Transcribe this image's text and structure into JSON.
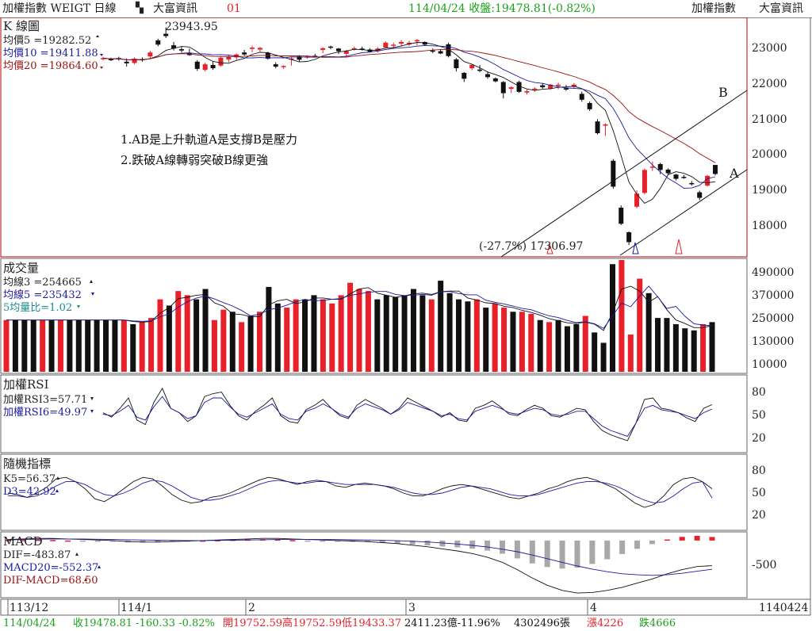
{
  "colors": {
    "up": "#e8202a",
    "down": "#111111",
    "green": "#1aa31a",
    "blue": "#1a1aa0",
    "darkred": "#9a1010",
    "teal": "#1a8c8c",
    "grey": "#a8a8a8",
    "frame": "#555555"
  },
  "top_bar": {
    "left_label": "加權指數 WEIGT 日線",
    "icon": "grid-dots-icon",
    "brand": "大富資訊",
    "code": "01",
    "quote": "114/04/24 收盤:19478.81(-0.82%)",
    "right_index": "加權指數",
    "right_brand": "大富資訊"
  },
  "kline_panel": {
    "title": "K 線圖",
    "ma5": "均價5 =19282.52",
    "ma10": "均價10 =19411.88",
    "ma20": "均價20 =19864.60",
    "high_label": "23943.95",
    "low_label": "(-27.7%) 17306.97",
    "annotation_1": "1.AB是上升軌道A是支撐B是壓力",
    "annotation_2": "2.跌破A線轉弱突破B線更強",
    "line_label_a": "A",
    "line_label_b": "B",
    "y_ticks": [
      "23000",
      "22000",
      "21000",
      "20000",
      "19000",
      "18000"
    ]
  },
  "volume_panel": {
    "title": "成交量",
    "ma3": "均線3 =254665",
    "ma5": "均線5 =235432",
    "ratio": "5均量比=1.02",
    "y_ticks": [
      "490000",
      "370000",
      "250000",
      "130000",
      "10000"
    ]
  },
  "rsi_panel": {
    "title": "加權RSI",
    "rsi3": "加權RSI3=57.71",
    "rsi6": "加權RSI6=49.97",
    "y_ticks": [
      "80",
      "50",
      "20"
    ]
  },
  "kd_panel": {
    "title": "隨機指標",
    "k5": "K5=56.37",
    "d3": "D3=42.92",
    "y_ticks": [
      "80",
      "50",
      "20"
    ]
  },
  "macd_panel": {
    "title": "MACD",
    "dif": "DIF=-483.87",
    "macd20": "MACD20=-552.37",
    "osc": "DIF-MACD=68.50",
    "y_ticks": [
      "-500"
    ]
  },
  "x_axis": {
    "labels": [
      "113/12",
      "114/1",
      "2",
      "3",
      "4"
    ],
    "right": "1140424"
  },
  "bottom_bar": {
    "date": "114/04/24",
    "close": "收19478.81 -160.33 -0.82%",
    "ohlc": "開19752.59高19752.59低19433.37",
    "amount": "2411.23億-11.96%",
    "volume": "4302496張",
    "adv": "漲4226",
    "dec": "跌4666"
  },
  "chart_data": {
    "type": "candlestick",
    "title": "加權指數 WEIGT 日線",
    "x_labels": [
      "113/12",
      "114/1",
      "2",
      "3",
      "4"
    ],
    "candles": [
      [
        23000,
        23050,
        22940,
        23010
      ],
      [
        22980,
        23020,
        22920,
        22960
      ],
      [
        23010,
        23050,
        22930,
        23000
      ],
      [
        22900,
        23000,
        22750,
        22850
      ],
      [
        22860,
        23030,
        22820,
        22990
      ],
      [
        22980,
        23030,
        22900,
        22950
      ],
      [
        23060,
        23230,
        22990,
        23180
      ],
      [
        23550,
        23600,
        23370,
        23420
      ],
      [
        23750,
        23944,
        23620,
        23680
      ],
      [
        23400,
        23500,
        23240,
        23300
      ],
      [
        23280,
        23350,
        23180,
        23240
      ],
      [
        23160,
        23300,
        23080,
        23100
      ],
      [
        22900,
        22950,
        22620,
        22680
      ],
      [
        22650,
        22870,
        22600,
        22820
      ],
      [
        22800,
        22920,
        22650,
        22700
      ],
      [
        22780,
        23070,
        22750,
        23020
      ],
      [
        22970,
        23100,
        22880,
        23040
      ],
      [
        23030,
        23150,
        22960,
        23120
      ],
      [
        23180,
        23260,
        23080,
        23120
      ],
      [
        23290,
        23390,
        23190,
        23330
      ],
      [
        23270,
        23350,
        23200,
        23320
      ],
      [
        23170,
        23200,
        22960,
        22990
      ],
      [
        22820,
        22880,
        22700,
        22750
      ],
      [
        22750,
        22790,
        22680,
        22770
      ],
      [
        22970,
        23040,
        22780,
        23000
      ],
      [
        23060,
        23100,
        22900,
        22960
      ],
      [
        23030,
        23100,
        22990,
        23060
      ],
      [
        23080,
        23140,
        23030,
        23050
      ],
      [
        23260,
        23340,
        23160,
        23310
      ],
      [
        23360,
        23390,
        23280,
        23330
      ],
      [
        23300,
        23320,
        23130,
        23220
      ],
      [
        23140,
        23260,
        23050,
        23220
      ],
      [
        23300,
        23360,
        23240,
        23310
      ],
      [
        23300,
        23360,
        23240,
        23260
      ],
      [
        23270,
        23310,
        23180,
        23200
      ],
      [
        23220,
        23340,
        23180,
        23300
      ],
      [
        23330,
        23520,
        23310,
        23480
      ],
      [
        23390,
        23480,
        23300,
        23420
      ],
      [
        23450,
        23560,
        23360,
        23500
      ],
      [
        23430,
        23540,
        23380,
        23480
      ],
      [
        23520,
        23590,
        23400,
        23560
      ],
      [
        23500,
        23520,
        23390,
        23420
      ],
      [
        23240,
        23300,
        23160,
        23210
      ],
      [
        23220,
        23260,
        23130,
        23150
      ],
      [
        23430,
        23480,
        23030,
        23070
      ],
      [
        22970,
        23010,
        22600,
        22700
      ],
      [
        22560,
        22580,
        22280,
        22380
      ],
      [
        22700,
        22830,
        22640,
        22800
      ],
      [
        22660,
        22800,
        22580,
        22620
      ],
      [
        22520,
        22600,
        22380,
        22430
      ],
      [
        22390,
        22420,
        22270,
        22300
      ],
      [
        22280,
        22310,
        21780,
        21940
      ],
      [
        22070,
        22150,
        21950,
        22120
      ],
      [
        22280,
        22320,
        21950,
        21980
      ],
      [
        21960,
        22050,
        21900,
        22000
      ],
      [
        22060,
        22120,
        21980,
        22080
      ],
      [
        22180,
        22250,
        22080,
        22120
      ],
      [
        22080,
        22220,
        22050,
        22200
      ],
      [
        22160,
        22260,
        22060,
        22200
      ],
      [
        22090,
        22190,
        22010,
        22050
      ],
      [
        22130,
        22250,
        22080,
        22200
      ],
      [
        21920,
        21990,
        21680,
        21740
      ],
      [
        21640,
        21690,
        21400,
        21450
      ],
      [
        21080,
        21150,
        20680,
        20720
      ],
      [
        20950,
        21020,
        20640,
        20990
      ],
      [
        19880,
        19930,
        19030,
        19090
      ],
      [
        18450,
        18520,
        17920,
        17960
      ],
      [
        17700,
        17730,
        17307,
        17400
      ],
      [
        18480,
        18980,
        18430,
        18880
      ],
      [
        18900,
        19640,
        18850,
        19600
      ],
      [
        19680,
        19860,
        19570,
        19700
      ],
      [
        19780,
        19820,
        19470,
        19600
      ],
      [
        19610,
        19650,
        19450,
        19500
      ],
      [
        19460,
        19480,
        19280,
        19330
      ],
      [
        19390,
        19450,
        19330,
        19370
      ],
      [
        19200,
        19260,
        19120,
        19180
      ],
      [
        18920,
        18970,
        18680,
        18750
      ],
      [
        19120,
        19450,
        19100,
        19420
      ],
      [
        19752,
        19752,
        19433,
        19478
      ]
    ],
    "ma5_last": 19282.52,
    "ma10_last": 19411.88,
    "ma20_last": 19864.6,
    "high": 23943.95,
    "low": 17306.97,
    "low_change_pct": -27.7,
    "ylim": [
      17000,
      24200
    ],
    "volume_ylim": [
      10000,
      550000
    ],
    "volume": [
      260000,
      260000,
      260000,
      260000,
      260000,
      260000,
      260000,
      260000,
      260000,
      260000,
      260000,
      260000,
      260000,
      260000,
      240000,
      250000,
      270000,
      360000,
      330000,
      400000,
      380000,
      360000,
      410000,
      260000,
      310000,
      300000,
      250000,
      280000,
      300000,
      420000,
      340000,
      320000,
      360000,
      360000,
      380000,
      360000,
      340000,
      380000,
      440000,
      410000,
      400000,
      360000,
      380000,
      370000,
      380000,
      410000,
      380000,
      360000,
      450000,
      390000,
      360000,
      350000,
      360000,
      320000,
      340000,
      320000,
      300000,
      300000,
      290000,
      260000,
      250000,
      260000,
      230000,
      240000,
      280000,
      200000,
      150000,
      530000,
      550000,
      190000,
      460000,
      390000,
      270000,
      270000,
      240000,
      220000,
      210000,
      240000,
      250000
    ],
    "volume_ma3_last": 254665,
    "volume_ma5_last": 235432,
    "volume_ratio_5": 1.02,
    "rsi3": [
      52,
      46,
      58,
      72,
      42,
      36,
      66,
      85,
      58,
      52,
      40,
      48,
      74,
      78,
      80,
      62,
      48,
      42,
      54,
      62,
      72,
      48,
      40,
      38,
      56,
      62,
      70,
      58,
      48,
      44,
      62,
      70,
      64,
      58,
      50,
      58,
      72,
      66,
      60,
      54,
      46,
      52,
      42,
      40,
      58,
      62,
      68,
      60,
      50,
      48,
      56,
      62,
      58,
      48,
      46,
      52,
      58,
      56,
      40,
      28,
      22,
      18,
      14,
      38,
      70,
      72,
      58,
      56,
      52,
      45,
      40,
      58,
      63
    ],
    "rsi6": [
      50,
      48,
      54,
      62,
      46,
      42,
      60,
      74,
      58,
      52,
      44,
      48,
      66,
      72,
      72,
      60,
      50,
      46,
      52,
      58,
      64,
      50,
      44,
      42,
      54,
      58,
      64,
      58,
      50,
      46,
      58,
      64,
      60,
      56,
      50,
      56,
      66,
      62,
      58,
      54,
      48,
      50,
      44,
      42,
      54,
      58,
      62,
      58,
      52,
      50,
      54,
      58,
      56,
      50,
      48,
      50,
      54,
      54,
      44,
      34,
      28,
      24,
      20,
      38,
      58,
      62,
      56,
      54,
      52,
      48,
      44,
      52,
      57
    ],
    "rsi3_last": 57.71,
    "rsi6_last": 49.97,
    "k5": [
      50,
      48,
      44,
      50,
      58,
      70,
      72,
      66,
      56,
      42,
      38,
      46,
      56,
      66,
      72,
      70,
      60,
      48,
      40,
      36,
      38,
      44,
      46,
      50,
      56,
      62,
      68,
      72,
      70,
      66,
      62,
      66,
      68,
      66,
      60,
      58,
      62,
      64,
      62,
      60,
      56,
      50,
      46,
      46,
      50,
      56,
      60,
      62,
      60,
      56,
      52,
      48,
      44,
      42,
      46,
      50,
      56,
      60,
      66,
      70,
      72,
      68,
      62,
      56,
      46,
      36,
      30,
      34,
      46,
      62,
      70,
      72,
      66,
      56
    ],
    "d3": [
      46,
      46,
      44,
      46,
      52,
      60,
      66,
      66,
      62,
      54,
      48,
      46,
      50,
      56,
      64,
      68,
      66,
      60,
      52,
      44,
      40,
      40,
      42,
      46,
      50,
      56,
      62,
      66,
      68,
      66,
      64,
      64,
      66,
      66,
      64,
      62,
      62,
      62,
      62,
      60,
      58,
      54,
      50,
      48,
      48,
      50,
      54,
      58,
      60,
      58,
      56,
      52,
      48,
      46,
      46,
      48,
      52,
      56,
      60,
      64,
      66,
      66,
      64,
      60,
      54,
      46,
      40,
      36,
      38,
      46,
      56,
      64,
      66,
      43
    ],
    "k5_last": 56.37,
    "d3_last": 42.92,
    "macd_dif": [
      20,
      30,
      40,
      40,
      30,
      20,
      10,
      0,
      -20,
      -30,
      -30,
      -20,
      -10,
      0,
      10,
      20,
      30,
      40,
      40,
      30,
      20,
      10,
      0,
      -10,
      -20,
      -40,
      -60,
      -90,
      -120,
      -160,
      -200,
      -250,
      -320,
      -420,
      -560,
      -720,
      -860,
      -960,
      -1010,
      -1000,
      -960,
      -900,
      -820,
      -740,
      -640,
      -560,
      -500,
      -484
    ],
    "macd_signal": [
      10,
      20,
      25,
      30,
      30,
      28,
      24,
      20,
      15,
      10,
      5,
      2,
      0,
      0,
      2,
      5,
      10,
      15,
      20,
      22,
      22,
      20,
      18,
      14,
      10,
      4,
      -4,
      -14,
      -28,
      -46,
      -68,
      -94,
      -126,
      -166,
      -216,
      -280,
      -350,
      -420,
      -490,
      -550,
      -600,
      -640,
      -660,
      -670,
      -660,
      -630,
      -590,
      -552
    ],
    "macd_hist": [
      10,
      10,
      15,
      10,
      0,
      -8,
      -14,
      -20,
      -35,
      -40,
      -35,
      -22,
      -10,
      0,
      8,
      15,
      20,
      25,
      20,
      8,
      -2,
      -10,
      -18,
      -24,
      -30,
      -44,
      -56,
      -76,
      -92,
      -114,
      -132,
      -156,
      -194,
      -254,
      -344,
      -440,
      -510,
      -540,
      -520,
      -450,
      -360,
      -260,
      -160,
      -70,
      20,
      70,
      90,
      68
    ],
    "macd_dif_last": -483.87,
    "macd20_last": -552.37,
    "macd_osc_last": 68.5,
    "rsi_ylim": [
      0,
      100
    ],
    "macd_ylim": [
      -1100,
      120
    ],
    "trendlines": [
      {
        "name": "A",
        "from": [
          67,
          17306.97
        ],
        "to": [
          79,
          19300
        ]
      },
      {
        "name": "B",
        "from": [
          63,
          17150
        ],
        "to": [
          79,
          21850
        ]
      }
    ]
  }
}
